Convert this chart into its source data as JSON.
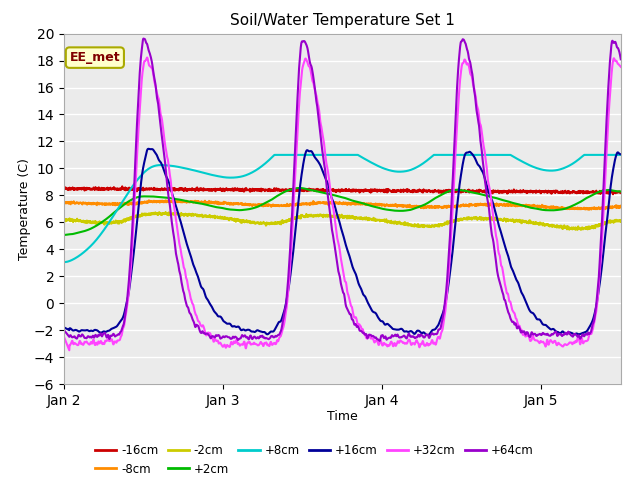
{
  "title": "Soil/Water Temperature Set 1",
  "xlabel": "Time",
  "ylabel": "Temperature (C)",
  "ylim": [
    -6,
    20
  ],
  "yticks": [
    -6,
    -4,
    -2,
    0,
    2,
    4,
    6,
    8,
    10,
    12,
    14,
    16,
    18,
    20
  ],
  "xtick_positions": [
    0,
    1,
    2,
    3
  ],
  "xtick_labels": [
    "Jan 2",
    "Jan 3",
    "Jan 4",
    "Jan 5"
  ],
  "annotation_text": "EE_met",
  "annotation_box_color": "#FFFFCC",
  "annotation_text_color": "#800000",
  "annotation_border_color": "#AAAA00",
  "fig_facecolor": "#FFFFFF",
  "ax_facecolor": "#EBEBEB",
  "grid_color": "#FFFFFF",
  "lines": {
    "-16cm": {
      "color": "#CC0000",
      "lw": 1.5
    },
    "-8cm": {
      "color": "#FF8C00",
      "lw": 1.5
    },
    "-2cm": {
      "color": "#CCCC00",
      "lw": 1.5
    },
    "+2cm": {
      "color": "#00BB00",
      "lw": 1.5
    },
    "+8cm": {
      "color": "#00CCCC",
      "lw": 1.5
    },
    "+16cm": {
      "color": "#000099",
      "lw": 1.5
    },
    "+32cm": {
      "color": "#FF44FF",
      "lw": 1.5
    },
    "+64cm": {
      "color": "#9900CC",
      "lw": 1.5
    }
  },
  "legend_ncol_row1": 6,
  "legend_ncol_row2": 2
}
